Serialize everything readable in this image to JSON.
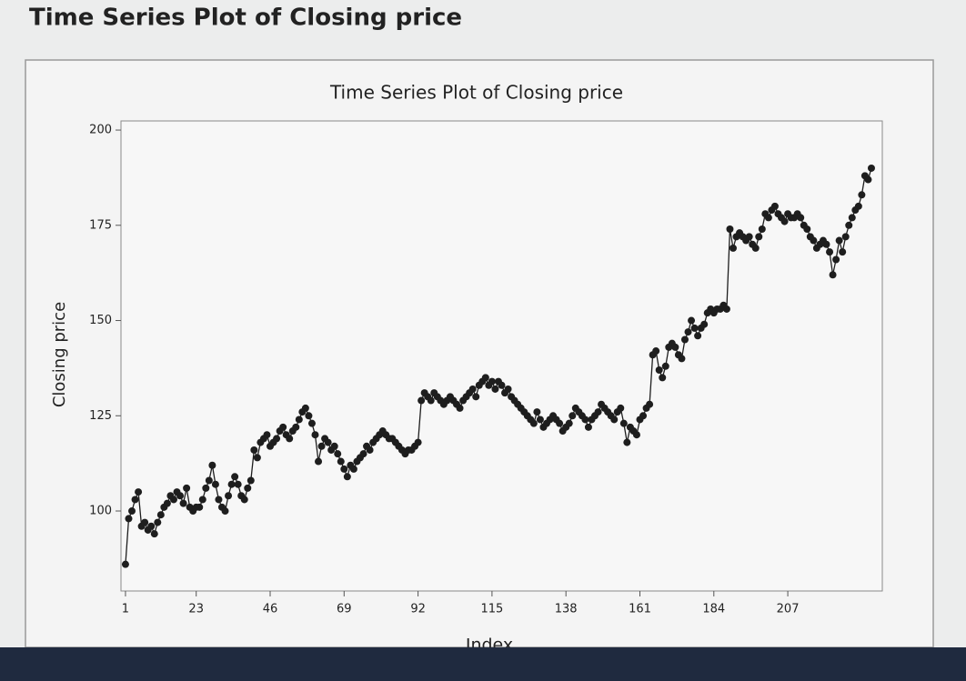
{
  "heading": "Time Series Plot of Closing price",
  "chart_data": {
    "type": "line",
    "title": "Time Series Plot of Closing price",
    "xlabel": "Index",
    "ylabel": "Closing price",
    "xlim": [
      -0.4,
      236.4
    ],
    "ylim": [
      79,
      202.4
    ],
    "xticks": [
      1,
      23,
      46,
      69,
      92,
      115,
      138,
      161,
      184,
      207
    ],
    "yticks": [
      100,
      125,
      150,
      175,
      200
    ],
    "markers": true,
    "x": [
      1,
      2,
      3,
      4,
      5,
      6,
      7,
      8,
      9,
      10,
      11,
      12,
      13,
      14,
      15,
      16,
      17,
      18,
      19,
      20,
      21,
      22,
      23,
      24,
      25,
      26,
      27,
      28,
      29,
      30,
      31,
      32,
      33,
      34,
      35,
      36,
      37,
      38,
      39,
      40,
      41,
      42,
      43,
      44,
      45,
      46,
      47,
      48,
      49,
      50,
      51,
      52,
      53,
      54,
      55,
      56,
      57,
      58,
      59,
      60,
      61,
      62,
      63,
      64,
      65,
      66,
      67,
      68,
      69,
      70,
      71,
      72,
      73,
      74,
      75,
      76,
      77,
      78,
      79,
      80,
      81,
      82,
      83,
      84,
      85,
      86,
      87,
      88,
      89,
      90,
      91,
      92,
      93,
      94,
      95,
      96,
      97,
      98,
      99,
      100,
      101,
      102,
      103,
      104,
      105,
      106,
      107,
      108,
      109,
      110,
      111,
      112,
      113,
      114,
      115,
      116,
      117,
      118,
      119,
      120,
      121,
      122,
      123,
      124,
      125,
      126,
      127,
      128,
      129,
      130,
      131,
      132,
      133,
      134,
      135,
      136,
      137,
      138,
      139,
      140,
      141,
      142,
      143,
      144,
      145,
      146,
      147,
      148,
      149,
      150,
      151,
      152,
      153,
      154,
      155,
      156,
      157,
      158,
      159,
      160,
      161,
      162,
      163,
      164,
      165,
      166,
      167,
      168,
      169,
      170,
      171,
      172,
      173,
      174,
      175,
      176,
      177,
      178,
      179,
      180,
      181,
      182,
      183,
      184,
      185,
      186,
      187,
      188,
      189,
      190,
      191,
      192,
      193,
      194,
      195,
      196,
      197,
      198,
      199,
      200,
      201,
      202,
      203,
      204,
      205,
      206,
      207,
      208,
      209,
      210,
      211,
      212,
      213,
      214,
      215,
      216,
      217,
      218,
      219,
      220,
      221,
      222,
      223,
      224,
      225,
      226,
      227,
      228,
      229,
      230,
      231,
      232,
      233
    ],
    "series": [
      {
        "name": "Closing price",
        "color": "#1e1e1e",
        "values": [
          86,
          98,
          100,
          103,
          105,
          96,
          97,
          95,
          96,
          94,
          97,
          99,
          101,
          102,
          104,
          103,
          105,
          104,
          102,
          106,
          101,
          100,
          101,
          101,
          103,
          106,
          108,
          112,
          107,
          103,
          101,
          100,
          104,
          107,
          109,
          107,
          104,
          103,
          106,
          108,
          116,
          114,
          118,
          119,
          120,
          117,
          118,
          119,
          121,
          122,
          120,
          119,
          121,
          122,
          124,
          126,
          127,
          125,
          123,
          120,
          113,
          117,
          119,
          118,
          116,
          117,
          115,
          113,
          111,
          109,
          112,
          111,
          113,
          114,
          115,
          117,
          116,
          118,
          119,
          120,
          121,
          120,
          119,
          119,
          118,
          117,
          116,
          115,
          116,
          116,
          117,
          118,
          129,
          131,
          130,
          129,
          131,
          130,
          129,
          128,
          129,
          130,
          129,
          128,
          127,
          129,
          130,
          131,
          132,
          130,
          133,
          134,
          135,
          133,
          134,
          132,
          134,
          133,
          131,
          132,
          130,
          129,
          128,
          127,
          126,
          125,
          124,
          123,
          126,
          124,
          122,
          123,
          124,
          125,
          124,
          123,
          121,
          122,
          123,
          125,
          127,
          126,
          125,
          124,
          122,
          124,
          125,
          126,
          128,
          127,
          126,
          125,
          124,
          126,
          127,
          123,
          118,
          122,
          121,
          120,
          124,
          125,
          127,
          128,
          141,
          142,
          137,
          135,
          138,
          143,
          144,
          143,
          141,
          140,
          145,
          147,
          150,
          148,
          146,
          148,
          149,
          152,
          153,
          152,
          153,
          153,
          154,
          153,
          174,
          169,
          172,
          173,
          172,
          171,
          172,
          170,
          169,
          172,
          174,
          178,
          177,
          179,
          180,
          178,
          177,
          176,
          178,
          177,
          177,
          178,
          177,
          175,
          174,
          172,
          171,
          169,
          170,
          171,
          170,
          168,
          162,
          166,
          171,
          168,
          172,
          175,
          177,
          179,
          180,
          183,
          188,
          187,
          190
        ]
      }
    ]
  }
}
